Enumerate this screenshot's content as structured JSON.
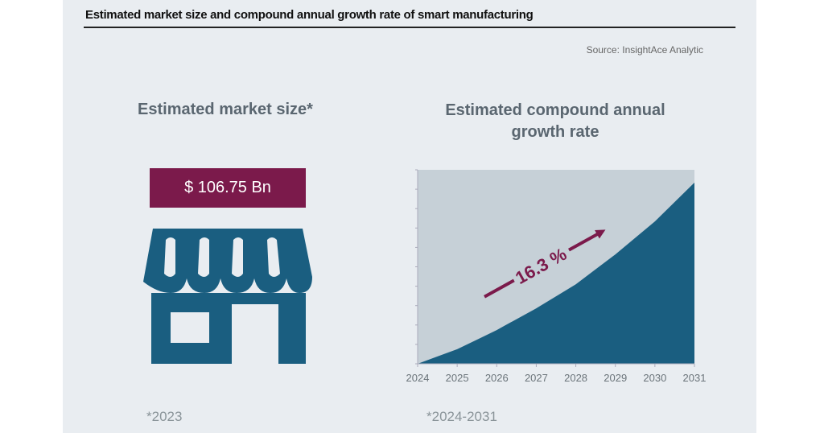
{
  "title": "Estimated market size and compound annual growth rate of smart manufacturing",
  "source": "Source: InsightAce Analytic",
  "market": {
    "heading": "Estimated market size*",
    "value": "$ 106.75 Bn",
    "footnote": "*2023",
    "icon": "storefront-icon"
  },
  "colors": {
    "accent": "#7b1a4b",
    "fill": "#1a5e80",
    "plot_bg": "#c6d0d7",
    "panel": "#e9edf1"
  },
  "chart_data": {
    "type": "area",
    "title": "Estimated compound annual growth rate",
    "annotation": "16.3 %",
    "footnote": "*2024-2031",
    "x": [
      "2024",
      "2025",
      "2026",
      "2027",
      "2028",
      "2029",
      "2030",
      "2031"
    ],
    "values": [
      0,
      7.5,
      17.4,
      28.6,
      41,
      56.4,
      73.4,
      93.4
    ],
    "ylim": [
      0,
      100
    ],
    "y_tick_labels": false,
    "grid": false,
    "xlabel": "",
    "ylabel": ""
  }
}
